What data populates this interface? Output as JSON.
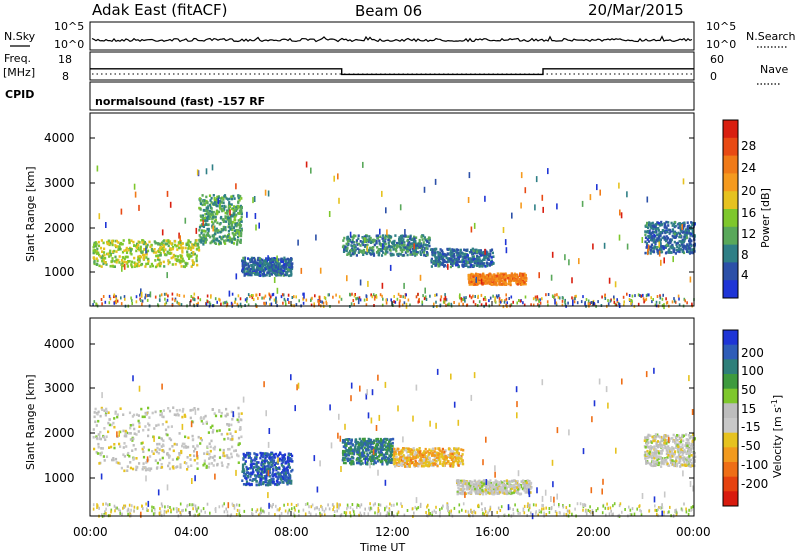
{
  "header": {
    "station": "Adak East (fitACF)",
    "beam": "Beam 06",
    "date": "20/Mar/2015"
  },
  "top_panels": {
    "nsky_label": "N.Sky",
    "nsky_ticks": [
      "10^5",
      "10^0"
    ],
    "nsearch_label": "N.Search",
    "nsearch_ticks": [
      "10^5",
      "10^0"
    ],
    "freq_label_line1": "Freq.",
    "freq_label_line2": "[MHz]",
    "freq_ticks": [
      "18",
      "8"
    ],
    "nave_label": "Nave",
    "nave_ticks": [
      "60",
      "0"
    ],
    "cpid_label": "CPID",
    "cpid_text": "normalsound (fast) -157 RF"
  },
  "axes": {
    "ylabel": "Slant Range [km]",
    "xlabel": "Time UT",
    "range_ticks": [
      "1000",
      "2000",
      "3000",
      "4000"
    ],
    "time_ticks": [
      "00:00",
      "04:00",
      "08:00",
      "12:00",
      "16:00",
      "20:00",
      "00:00"
    ]
  },
  "power_colorbar": {
    "label": "Power [dB]",
    "ticks": [
      "4",
      "8",
      "12",
      "16",
      "20",
      "24",
      "28"
    ],
    "colors": [
      "#1f35d6",
      "#2c50a8",
      "#2f7f86",
      "#59a85a",
      "#7ec72c",
      "#e6c21f",
      "#f59a1e",
      "#f07a18",
      "#e84a14",
      "#d91f10"
    ]
  },
  "velocity_colorbar": {
    "label_main": "Velocity [m s",
    "label_sup": "-1",
    "label_end": "]",
    "ticks": [
      "200",
      "100",
      "50",
      "15",
      "-15",
      "-50",
      "-100",
      "-200"
    ],
    "colors": [
      "#1f35d6",
      "#2f5db8",
      "#2f7f7a",
      "#3e9a3e",
      "#7ec72c",
      "#bdbdbd",
      "#c8c8c8",
      "#e6c21f",
      "#f29a1e",
      "#ef6e16",
      "#e6420f",
      "#d81b0e"
    ]
  },
  "chart_data": [
    {
      "type": "line",
      "name": "N.Sky / N.Search",
      "x_unit": "hours UT",
      "xlim": [
        0,
        24
      ],
      "ylim_labels": [
        "10^0",
        "10^5"
      ],
      "description_values": "near-constant low level across the day"
    },
    {
      "type": "line",
      "name": "Freq. [MHz] / Nave",
      "x_unit": "hours UT",
      "xlim": [
        0,
        24
      ],
      "series": [
        {
          "name": "Freq.",
          "x": [
            0,
            10,
            10,
            18,
            18,
            24
          ],
          "values": [
            12,
            12,
            10,
            10,
            12,
            12
          ]
        }
      ]
    },
    {
      "type": "heatmap",
      "name": "Power",
      "xlim": [
        0,
        24
      ],
      "ylim": [
        200,
        4500
      ],
      "zlim": [
        0,
        30
      ],
      "regions": [
        {
          "t": [
            0.1,
            4.3
          ],
          "range": [
            1100,
            1700
          ],
          "power": 14
        },
        {
          "t": [
            4.3,
            6.0
          ],
          "range": [
            1600,
            2700
          ],
          "power": 10
        },
        {
          "t": [
            6.0,
            8.0
          ],
          "range": [
            900,
            1300
          ],
          "power": 6
        },
        {
          "t": [
            10.0,
            13.5
          ],
          "range": [
            1350,
            1800
          ],
          "power": 8
        },
        {
          "t": [
            13.5,
            16.0
          ],
          "range": [
            1100,
            1500
          ],
          "power": 6
        },
        {
          "t": [
            15.0,
            17.3
          ],
          "range": [
            700,
            950
          ],
          "power": 22
        },
        {
          "t": [
            22.0,
            24.0
          ],
          "range": [
            1400,
            2100
          ],
          "power": 6
        }
      ]
    },
    {
      "type": "heatmap",
      "name": "Velocity",
      "xlim": [
        0,
        24
      ],
      "ylim": [
        200,
        4500
      ],
      "zlim": [
        -200,
        200
      ],
      "regions": [
        {
          "t": [
            0.1,
            6.0
          ],
          "range": [
            1200,
            2600
          ],
          "velocity": 0
        },
        {
          "t": [
            6.0,
            8.0
          ],
          "range": [
            900,
            1600
          ],
          "velocity": 150
        },
        {
          "t": [
            10.0,
            12.0
          ],
          "range": [
            1350,
            1900
          ],
          "velocity": 120
        },
        {
          "t": [
            12.0,
            14.8
          ],
          "range": [
            1300,
            1700
          ],
          "velocity": -60
        },
        {
          "t": [
            14.5,
            17.5
          ],
          "range": [
            700,
            1000
          ],
          "velocity": 0
        },
        {
          "t": [
            22.0,
            24.0
          ],
          "range": [
            1300,
            2000
          ],
          "velocity": 0
        }
      ]
    }
  ]
}
